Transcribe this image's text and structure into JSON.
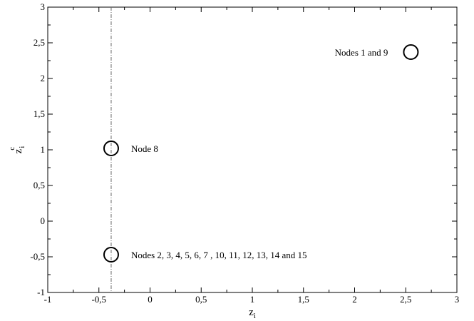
{
  "chart_data": {
    "type": "scatter",
    "title": "",
    "xlabel": {
      "base": "z",
      "sub": "i"
    },
    "ylabel": {
      "base": "z",
      "sub": "i",
      "sup": "c"
    },
    "xlim": [
      -1,
      3
    ],
    "ylim": [
      -1,
      3
    ],
    "x_ticks": [
      "-1",
      "-0,5",
      "0",
      "0,5",
      "1",
      "1,5",
      "2",
      "2,5",
      "3"
    ],
    "y_ticks": [
      "-1",
      "-0,5",
      "0",
      "0,5",
      "1",
      "1,5",
      "2",
      "2,5",
      "3"
    ],
    "grid": false,
    "points": [
      {
        "x": 2.55,
        "y": 2.37,
        "label": "Nodes 1 and 9",
        "label_side": "left"
      },
      {
        "x": -0.38,
        "y": 1.02,
        "label": "Node 8",
        "label_side": "right"
      },
      {
        "x": -0.38,
        "y": -0.47,
        "label": "Nodes 2, 3, 4, 5, 6, 7 , 10, 11, 12, 13, 14 and 15",
        "label_side": "right"
      }
    ],
    "reference_lines": [
      {
        "orientation": "vertical",
        "x": -0.38,
        "style": "dash-dot"
      }
    ]
  }
}
